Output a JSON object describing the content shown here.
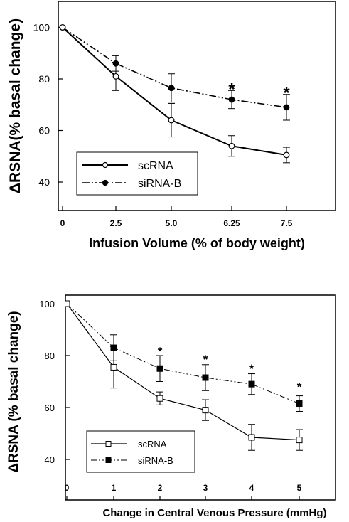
{
  "chart_data": [
    {
      "type": "line",
      "title": "",
      "xlabel": "Infusion Volume (% of body weight)",
      "ylabel": "ΔRSNA(% basal change)",
      "x_ticks": [
        "0",
        "2.5",
        "5.0",
        "6.25",
        "7.5"
      ],
      "x": [
        0,
        1,
        2,
        3,
        4
      ],
      "y_ticks": [
        "40",
        "60",
        "80",
        "100"
      ],
      "ylim": [
        35,
        110
      ],
      "grid": false,
      "legend_position": "bottom-left",
      "series": [
        {
          "name": "scRNA",
          "marker": "open-circle",
          "line_style": "solid",
          "values": [
            100,
            81,
            64,
            54,
            50.5
          ],
          "errors": [
            0,
            5.5,
            6.5,
            4,
            3
          ]
        },
        {
          "name": "siRNA-B",
          "marker": "filled-circle",
          "line_style": "dash-dot-dot",
          "values": [
            100,
            86,
            76.5,
            72,
            69
          ],
          "errors": [
            0,
            3,
            5.5,
            3.5,
            5
          ]
        }
      ],
      "annotations": [
        {
          "text": "*",
          "x": 3,
          "y": 77.5
        },
        {
          "text": "*",
          "x": 4,
          "y": 76
        }
      ]
    },
    {
      "type": "line",
      "title": "",
      "xlabel": "Change in Central Venous Pressure (mmHg)",
      "ylabel": "ΔRSNA  (% basal change)",
      "x_ticks": [
        "0",
        "1",
        "2",
        "3",
        "4",
        "5"
      ],
      "x": [
        0,
        1,
        2,
        3,
        4,
        5
      ],
      "y_ticks": [
        "40",
        "60",
        "80",
        "100"
      ],
      "ylim": [
        35,
        110
      ],
      "grid": false,
      "legend_position": "bottom-left",
      "series": [
        {
          "name": "scRNA",
          "marker": "open-square",
          "line_style": "solid",
          "values": [
            100,
            75.5,
            63.5,
            59,
            48.5,
            47.5
          ],
          "errors": [
            0,
            8,
            2.5,
            4,
            5,
            4
          ]
        },
        {
          "name": "siRNA-B",
          "marker": "filled-square",
          "line_style": "dash-dot-dot",
          "values": [
            100,
            83,
            75,
            71.5,
            69,
            61.5
          ],
          "errors": [
            0,
            5,
            5,
            5,
            4,
            3
          ]
        }
      ],
      "annotations": [
        {
          "text": "*",
          "x": 2,
          "y": 82.5
        },
        {
          "text": "*",
          "x": 3,
          "y": 79.5
        },
        {
          "text": "*",
          "x": 4,
          "y": 76
        },
        {
          "text": "*",
          "x": 5,
          "y": 69
        }
      ]
    }
  ]
}
